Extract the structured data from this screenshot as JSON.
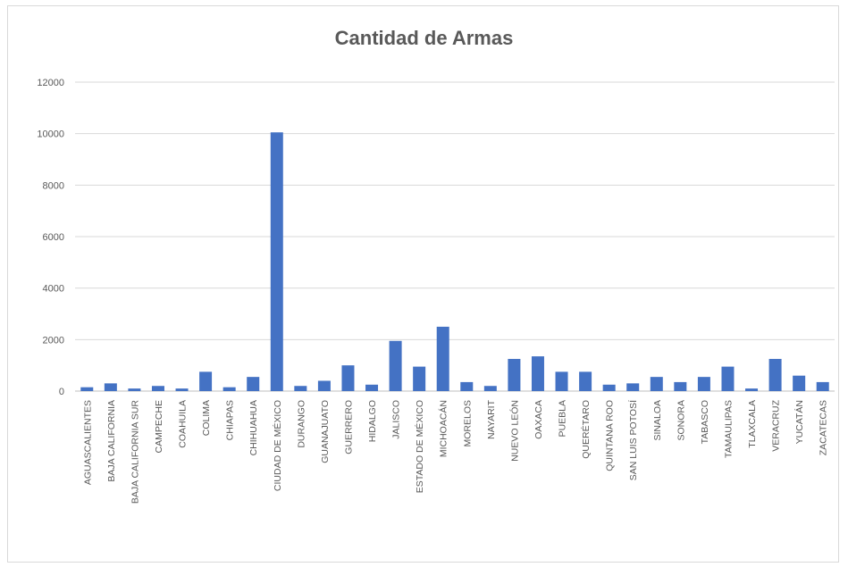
{
  "chart_data": {
    "type": "bar",
    "title": "Cantidad de Armas",
    "xlabel": "",
    "ylabel": "",
    "ylim": [
      0,
      12000
    ],
    "yticks": [
      0,
      2000,
      4000,
      6000,
      8000,
      10000,
      12000
    ],
    "grid": true,
    "legend": "none",
    "bar_color": "#4472c4",
    "categories": [
      "AGUASCALIENTES",
      "BAJA CALIFORNIA",
      "BAJA CALIFORNIA SUR",
      "CAMPECHE",
      "COAHUILA",
      "COLIMA",
      "CHIAPAS",
      "CHIHUAHUA",
      "CIUDAD DE MÉXICO",
      "DURANGO",
      "GUANAJUATO",
      "GUERRERO",
      "HIDALGO",
      "JALISCO",
      "ESTADO DE MÉXICO",
      "MICHOACÁN",
      "MORELOS",
      "NAYARIT",
      "NUEVO LEÓN",
      "OAXACA",
      "PUEBLA",
      "QUERÉTARO",
      "QUINTANA ROO",
      "SAN LUIS POTOSÍ",
      "SINALOA",
      "SONORA",
      "TABASCO",
      "TAMAULIPAS",
      "TLAXCALA",
      "VERACRUZ",
      "YUCATÁN",
      "ZACATECAS"
    ],
    "values": [
      150,
      300,
      100,
      200,
      100,
      750,
      150,
      550,
      10050,
      200,
      400,
      1000,
      250,
      1950,
      950,
      2500,
      350,
      200,
      1250,
      1350,
      750,
      750,
      250,
      300,
      550,
      350,
      550,
      950,
      100,
      1250,
      600,
      350
    ]
  }
}
